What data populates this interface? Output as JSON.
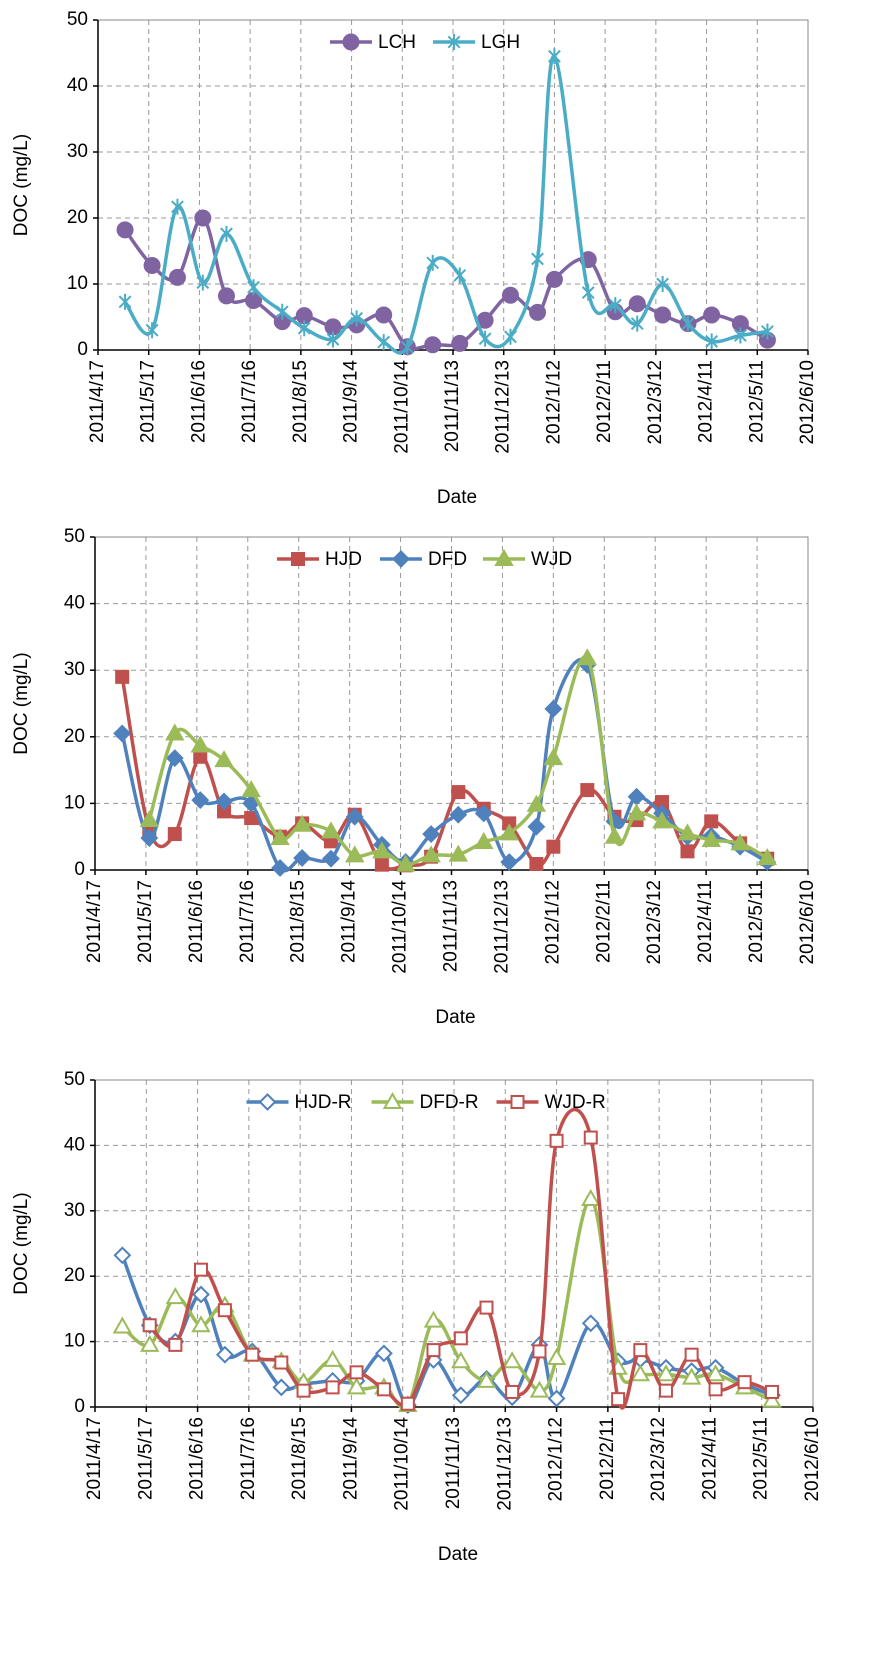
{
  "chart_data": [
    {
      "type": "line",
      "xlabel": "Date",
      "ylabel": "DOC (mg/L)",
      "grid": true,
      "legend": "top",
      "xlim": [
        "2011/4/17",
        "2012/6/10"
      ],
      "xticks": [
        "2011/4/17",
        "2011/5/17",
        "2011/6/16",
        "2011/7/16",
        "2011/8/15",
        "2011/9/14",
        "2011/10/14",
        "2011/11/13",
        "2011/12/13",
        "2012/1/12",
        "2012/2/11",
        "2012/3/12",
        "2012/4/11",
        "2012/5/11",
        "2012/6/10"
      ],
      "ylim": [
        0,
        50
      ],
      "yticks": [
        0,
        10,
        20,
        30,
        40,
        50
      ],
      "x": [
        "2011/5/3",
        "2011/5/19",
        "2011/6/3",
        "2011/6/18",
        "2011/7/2",
        "2011/7/18",
        "2011/8/4",
        "2011/8/17",
        "2011/9/3",
        "2011/9/17",
        "2011/10/3",
        "2011/10/17",
        "2011/11/1",
        "2011/11/17",
        "2011/12/2",
        "2011/12/17",
        "2012/1/2",
        "2012/1/12",
        "2012/2/1",
        "2012/2/17",
        "2012/3/1",
        "2012/3/16",
        "2012/3/31",
        "2012/4/14",
        "2012/5/1",
        "2012/5/17"
      ],
      "series": [
        {
          "name": "LCH",
          "color": "#8064a2",
          "marker": "circle",
          "filled": true,
          "values": [
            18.2,
            12.8,
            11,
            20,
            8.2,
            7.5,
            4.3,
            5.2,
            3.5,
            3.8,
            5.3,
            0.5,
            0.8,
            1.0,
            4.5,
            8.3,
            5.7,
            10.7,
            13.7,
            5.8,
            7,
            5.3,
            4,
            5.3,
            4,
            1.5
          ]
        },
        {
          "name": "LGH",
          "color": "#4bacc6",
          "marker": "star",
          "filled": true,
          "values": [
            7.3,
            3,
            21.7,
            10.2,
            17.6,
            9.5,
            5.8,
            3.3,
            1.6,
            4.8,
            1.2,
            0.4,
            13.2,
            11.3,
            1.7,
            2,
            13.8,
            44.5,
            8.7,
            6.8,
            4,
            10,
            4,
            1.3,
            2.2,
            2.8
          ]
        }
      ]
    },
    {
      "type": "line",
      "xlabel": "Date",
      "ylabel": "DOC (mg/L)",
      "grid": true,
      "legend": "top",
      "xlim": [
        "2011/4/17",
        "2012/6/10"
      ],
      "xticks": [
        "2011/4/17",
        "2011/5/17",
        "2011/6/16",
        "2011/7/16",
        "2011/8/15",
        "2011/9/14",
        "2011/10/14",
        "2011/11/13",
        "2011/12/13",
        "2012/1/12",
        "2012/2/11",
        "2012/3/12",
        "2012/4/11",
        "2012/5/11",
        "2012/6/10"
      ],
      "ylim": [
        0,
        50
      ],
      "yticks": [
        0,
        10,
        20,
        30,
        40,
        50
      ],
      "x": [
        "2011/5/3",
        "2011/5/19",
        "2011/6/3",
        "2011/6/18",
        "2011/7/2",
        "2011/7/18",
        "2011/8/4",
        "2011/8/17",
        "2011/9/3",
        "2011/9/17",
        "2011/10/3",
        "2011/10/17",
        "2011/11/1",
        "2011/11/17",
        "2011/12/2",
        "2011/12/17",
        "2012/1/2",
        "2012/1/12",
        "2012/2/1",
        "2012/2/17",
        "2012/3/1",
        "2012/3/16",
        "2012/3/31",
        "2012/4/14",
        "2012/5/1",
        "2012/5/17"
      ],
      "series": [
        {
          "name": "HJD",
          "color": "#c0504d",
          "marker": "square",
          "filled": true,
          "values": [
            29,
            6,
            5.4,
            17,
            8.8,
            7.8,
            5,
            7,
            4.3,
            8.3,
            0.8,
            0.7,
            2,
            11.7,
            9.2,
            7,
            0.9,
            3.5,
            12,
            8,
            7.5,
            10.2,
            2.8,
            7.3,
            4,
            1.7
          ]
        },
        {
          "name": "DFD",
          "color": "#4f81bd",
          "marker": "diamond",
          "filled": true,
          "values": [
            20.5,
            4.8,
            16.8,
            10.5,
            10.3,
            10,
            0.3,
            1.8,
            1.7,
            8,
            3.8,
            1.2,
            5.4,
            8.3,
            8.5,
            1.2,
            6.5,
            24.2,
            30.8,
            7.3,
            11,
            8.5,
            5,
            5.1,
            3.5,
            1.2
          ]
        },
        {
          "name": "WJD",
          "color": "#9bbb59",
          "marker": "triangle",
          "filled": true,
          "values": [
            null,
            7.5,
            20.5,
            18.7,
            16.5,
            12,
            4.8,
            6.8,
            5.8,
            2.2,
            2.8,
            0.8,
            2.2,
            2.3,
            4.2,
            5.5,
            9.8,
            16.8,
            31.8,
            5,
            8.5,
            7.3,
            5.5,
            4.5,
            4,
            1.8
          ]
        }
      ]
    },
    {
      "type": "line",
      "xlabel": "Date",
      "ylabel": "DOC (mg/L)",
      "grid": true,
      "legend": "top",
      "xlim": [
        "2011/4/17",
        "2012/6/10"
      ],
      "xticks": [
        "2011/4/17",
        "2011/5/17",
        "2011/6/16",
        "2011/7/16",
        "2011/8/15",
        "2011/9/14",
        "2011/10/14",
        "2011/11/13",
        "2011/12/13",
        "2012/1/12",
        "2012/2/11",
        "2012/3/12",
        "2012/4/11",
        "2012/5/11",
        "2012/6/10"
      ],
      "ylim": [
        0,
        50
      ],
      "yticks": [
        0,
        10,
        20,
        30,
        40,
        50
      ],
      "x": [
        "2011/5/3",
        "2011/5/19",
        "2011/6/3",
        "2011/6/18",
        "2011/7/2",
        "2011/7/18",
        "2011/8/4",
        "2011/8/17",
        "2011/9/3",
        "2011/9/17",
        "2011/10/3",
        "2011/10/17",
        "2011/11/1",
        "2011/11/17",
        "2011/12/2",
        "2011/12/17",
        "2012/1/2",
        "2012/1/12",
        "2012/2/1",
        "2012/2/17",
        "2012/3/1",
        "2012/3/16",
        "2012/3/31",
        "2012/4/14",
        "2012/5/1",
        "2012/5/17"
      ],
      "series": [
        {
          "name": "HJD-R",
          "color": "#4f81bd",
          "marker": "diamond",
          "filled": false,
          "values": [
            23.2,
            12.5,
            10,
            17.2,
            8,
            8.5,
            3,
            3.5,
            4,
            4,
            8.2,
            0.3,
            7.2,
            1.8,
            4.3,
            1.5,
            9.5,
            1.3,
            12.8,
            7,
            7.3,
            6,
            5.5,
            6,
            3.5,
            1.8
          ]
        },
        {
          "name": "DFD-R",
          "color": "#9bbb59",
          "marker": "triangle",
          "filled": false,
          "values": [
            12.3,
            9.5,
            16.8,
            12.5,
            15.5,
            8,
            7,
            3.8,
            7.2,
            3,
            3,
            0.3,
            13.2,
            7,
            4,
            7,
            2.5,
            7.5,
            31.8,
            6,
            5,
            5,
            4.5,
            5,
            3,
            1
          ]
        },
        {
          "name": "WJD-R",
          "color": "#c0504d",
          "marker": "square",
          "filled": false,
          "values": [
            null,
            12.5,
            9.5,
            21,
            14.8,
            8,
            6.8,
            2.5,
            3,
            5.3,
            2.7,
            0.5,
            8.7,
            10.5,
            15.2,
            2.3,
            8.5,
            40.7,
            41.2,
            1.2,
            8.7,
            2.5,
            8,
            2.7,
            3.8,
            2.3
          ]
        }
      ]
    }
  ]
}
